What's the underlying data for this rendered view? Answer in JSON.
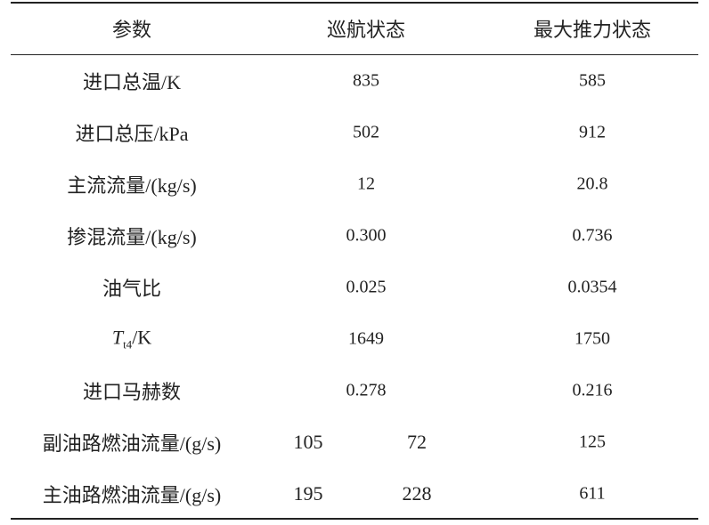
{
  "table": {
    "header": [
      "参数",
      "巡航状态",
      "最大推力状态"
    ],
    "rows": [
      {
        "label": "进口总温/K",
        "cruise": [
          "835"
        ],
        "max": "585"
      },
      {
        "label": "进口总压/kPa",
        "cruise": [
          "502"
        ],
        "max": "912"
      },
      {
        "label": "主流流量/(kg/s)",
        "cruise": [
          "12"
        ],
        "max": "20.8"
      },
      {
        "label": "掺混流量/(kg/s)",
        "cruise": [
          "0.300"
        ],
        "max": "0.736"
      },
      {
        "label": "油气比",
        "cruise": [
          "0.025"
        ],
        "max": "0.0354"
      },
      {
        "label": {
          "symbol": "T",
          "sub": "t4",
          "rest": "/K"
        },
        "cruise": [
          "1649"
        ],
        "max": "1750"
      },
      {
        "label": "进口马赫数",
        "cruise": [
          "0.278"
        ],
        "max": "0.216"
      },
      {
        "label": "副油路燃油流量/(g/s)",
        "cruise": [
          "105",
          "72"
        ],
        "max": "125"
      },
      {
        "label": "主油路燃油流量/(g/s)",
        "cruise": [
          "195",
          "228"
        ],
        "max": "611"
      }
    ]
  }
}
